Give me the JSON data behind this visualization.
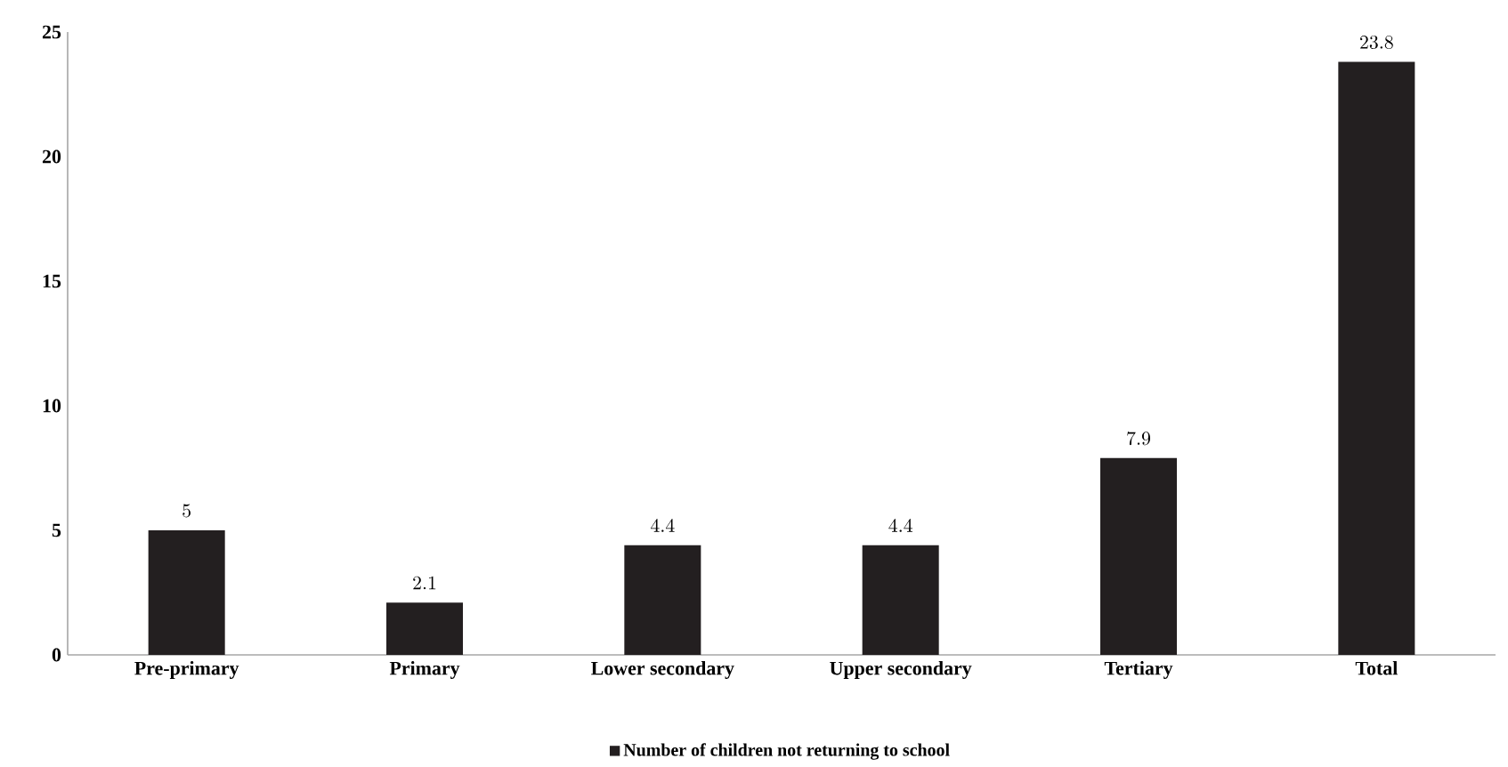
{
  "chart_data": {
    "type": "bar",
    "categories": [
      "Pre-primary",
      "Primary",
      "Lower secondary",
      "Upper secondary",
      "Tertiary",
      "Total"
    ],
    "series": [
      {
        "name": "Number of children not returning to school",
        "color": "#231f20",
        "values": [
          5,
          2.1,
          4.4,
          4.4,
          7.9,
          23.8
        ]
      }
    ],
    "ylim": [
      0,
      25
    ],
    "yticks": [
      0,
      5,
      10,
      15,
      20,
      25
    ],
    "grid": false,
    "legend": "bottom",
    "data_labels": true
  }
}
